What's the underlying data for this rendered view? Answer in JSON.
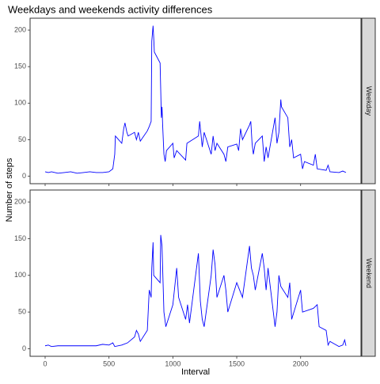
{
  "chart_data": {
    "type": "line",
    "title": "Weekdays and weekends activity differences",
    "xlabel": "Interval",
    "ylabel": "Number of steps",
    "xlim": [
      -117.75,
      2472.75
    ],
    "xticks": [
      0,
      500,
      1000,
      1500,
      2000
    ],
    "ylim": [
      -10.3,
      216.3
    ],
    "yticks": [
      0,
      50,
      100,
      150,
      200
    ],
    "series": [
      {
        "name": "Weekday",
        "color": "#0000ff",
        "x": [
          0,
          25,
          50,
          100,
          150,
          200,
          250,
          300,
          350,
          400,
          450,
          500,
          530,
          545,
          550,
          600,
          615,
          625,
          640,
          650,
          700,
          715,
          730,
          745,
          800,
          815,
          830,
          835,
          845,
          850,
          855,
          900,
          910,
          915,
          920,
          930,
          940,
          950,
          1000,
          1010,
          1030,
          1100,
          1110,
          1200,
          1210,
          1230,
          1245,
          1300,
          1315,
          1330,
          1345,
          1400,
          1415,
          1430,
          1500,
          1515,
          1530,
          1545,
          1600,
          1610,
          1620,
          1630,
          1645,
          1700,
          1715,
          1730,
          1745,
          1800,
          1815,
          1830,
          1845,
          1850,
          1900,
          1915,
          1930,
          1945,
          2000,
          2015,
          2030,
          2100,
          2115,
          2130,
          2200,
          2215,
          2230,
          2300,
          2330,
          2355
        ],
        "values": [
          6,
          5,
          6,
          4,
          5,
          6,
          4,
          5,
          6,
          5,
          5,
          6,
          10,
          30,
          55,
          45,
          65,
          73,
          60,
          55,
          60,
          50,
          60,
          48,
          62,
          68,
          75,
          185,
          206,
          190,
          170,
          155,
          80,
          95,
          70,
          30,
          20,
          35,
          45,
          25,
          35,
          22,
          45,
          55,
          75,
          40,
          60,
          30,
          55,
          35,
          45,
          30,
          20,
          40,
          44,
          35,
          65,
          50,
          70,
          75,
          45,
          30,
          45,
          55,
          20,
          40,
          25,
          80,
          45,
          60,
          105,
          95,
          80,
          40,
          50,
          25,
          30,
          10,
          20,
          15,
          30,
          10,
          8,
          15,
          6,
          5,
          7,
          5
        ]
      },
      {
        "name": "Weekend",
        "color": "#0000ff",
        "x": [
          0,
          25,
          50,
          100,
          150,
          200,
          300,
          400,
          450,
          500,
          530,
          545,
          600,
          645,
          700,
          715,
          730,
          745,
          800,
          815,
          830,
          835,
          845,
          850,
          900,
          905,
          915,
          930,
          945,
          1000,
          1030,
          1045,
          1100,
          1115,
          1130,
          1200,
          1215,
          1230,
          1245,
          1300,
          1315,
          1330,
          1345,
          1400,
          1415,
          1430,
          1500,
          1545,
          1600,
          1615,
          1630,
          1645,
          1700,
          1715,
          1730,
          1745,
          1800,
          1815,
          1830,
          1845,
          1900,
          1915,
          1930,
          2000,
          2015,
          2100,
          2130,
          2145,
          2200,
          2215,
          2230,
          2300,
          2330,
          2345,
          2355
        ],
        "values": [
          4,
          5,
          3,
          4,
          4,
          4,
          4,
          4,
          6,
          5,
          8,
          3,
          5,
          8,
          16,
          25,
          20,
          10,
          25,
          80,
          70,
          110,
          145,
          100,
          90,
          155,
          140,
          50,
          30,
          60,
          110,
          70,
          40,
          60,
          35,
          130,
          65,
          40,
          30,
          100,
          135,
          115,
          70,
          100,
          80,
          50,
          90,
          70,
          140,
          110,
          100,
          80,
          130,
          110,
          80,
          110,
          30,
          50,
          100,
          85,
          70,
          90,
          40,
          80,
          50,
          55,
          60,
          30,
          25,
          5,
          10,
          3,
          5,
          12,
          4
        ]
      }
    ]
  }
}
